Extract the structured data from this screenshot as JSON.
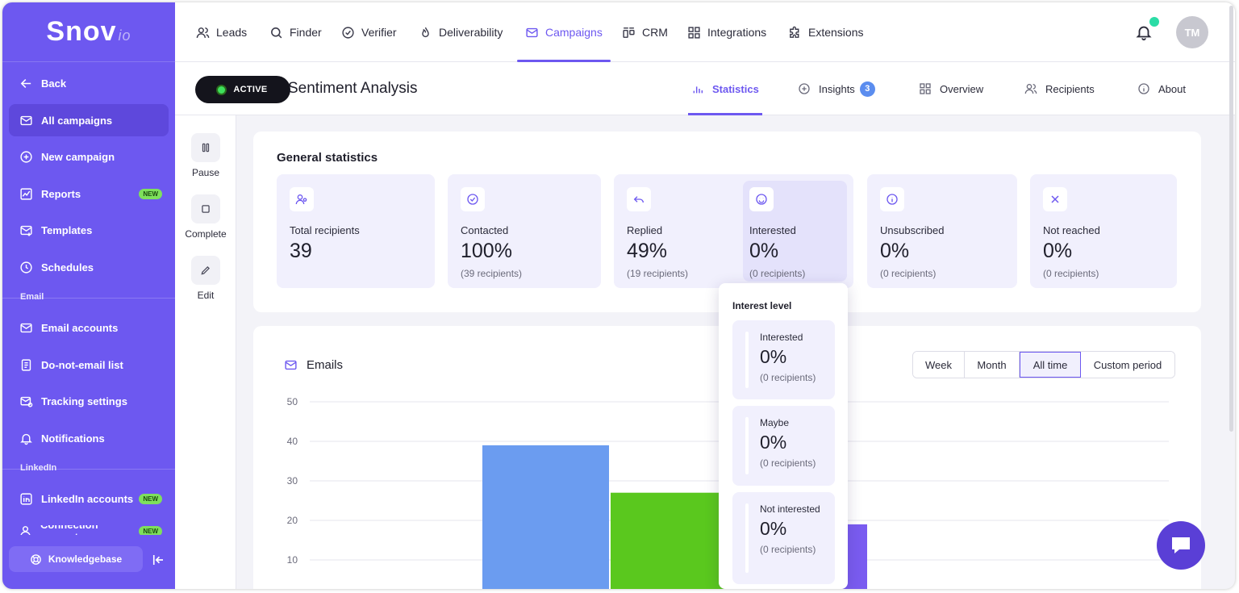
{
  "logo": {
    "main": "Snov",
    "suffix": "io"
  },
  "sidebar": {
    "back": "Back",
    "items": [
      {
        "label": "All campaigns",
        "icon": "mail-icon"
      },
      {
        "label": "New campaign",
        "icon": "plus-circle-icon"
      },
      {
        "label": "Reports",
        "icon": "chart-icon",
        "badge": "NEW"
      },
      {
        "label": "Templates",
        "icon": "template-icon"
      },
      {
        "label": "Schedules",
        "icon": "clock-icon"
      }
    ],
    "email_section": "Email",
    "email_items": [
      {
        "label": "Email accounts"
      },
      {
        "label": "Do-not-email list"
      },
      {
        "label": "Tracking settings"
      },
      {
        "label": "Notifications"
      }
    ],
    "linkedin_section": "LinkedIn",
    "linkedin_items": [
      {
        "label": "LinkedIn accounts",
        "badge": "NEW"
      },
      {
        "label": "Connection requests",
        "badge": "NEW"
      }
    ],
    "knowledgebase": "Knowledgebase"
  },
  "topnav": {
    "items": [
      "Leads",
      "Finder",
      "Verifier",
      "Deliverability",
      "Campaigns",
      "CRM",
      "Integrations",
      "Extensions"
    ],
    "active": "Campaigns",
    "avatar": "TM"
  },
  "campaign": {
    "status": "ACTIVE",
    "title": "Sentiment Analysis",
    "tabs": [
      {
        "label": "Statistics"
      },
      {
        "label": "Insights",
        "badge": "3"
      },
      {
        "label": "Overview"
      },
      {
        "label": "Recipients"
      },
      {
        "label": "About"
      }
    ]
  },
  "actions": {
    "pause": "Pause",
    "complete": "Complete",
    "edit": "Edit"
  },
  "general": {
    "title": "General statistics",
    "stats": [
      {
        "label": "Total recipients",
        "value": "39",
        "sub": ""
      },
      {
        "label": "Contacted",
        "value": "100%",
        "sub": "(39 recipients)"
      },
      {
        "label": "Replied",
        "value": "49%",
        "sub": "(19 recipients)"
      },
      {
        "label": "Interested",
        "value": "0%",
        "sub": "(0 recipients)"
      },
      {
        "label": "Unsubscribed",
        "value": "0%",
        "sub": "(0 recipients)"
      },
      {
        "label": "Not reached",
        "value": "0%",
        "sub": "(0 recipients)"
      }
    ]
  },
  "interest_popover": {
    "title": "Interest level",
    "items": [
      {
        "label": "Interested",
        "value": "0%",
        "sub": "(0 recipients)"
      },
      {
        "label": "Maybe",
        "value": "0%",
        "sub": "(0 recipients)"
      },
      {
        "label": "Not interested",
        "value": "0%",
        "sub": "(0 recipients)"
      }
    ]
  },
  "emails": {
    "title": "Emails",
    "periods": [
      "Week",
      "Month",
      "All time",
      "Custom period"
    ],
    "active_period": "All time"
  },
  "chart_data": {
    "type": "bar",
    "title": "Emails",
    "ylim": [
      0,
      50
    ],
    "yticks": [
      10,
      20,
      30,
      40,
      50
    ],
    "grid": true,
    "series": [
      {
        "values": [
          39
        ],
        "color": "#6b9cf0"
      },
      {
        "values": [
          27
        ],
        "color": "#5ac81e"
      },
      {
        "values": [
          19
        ],
        "color": "#7a5cf0"
      }
    ]
  },
  "colors": {
    "accent": "#6d58f0",
    "sidebar": "#6d58f0",
    "active_dot": "#3ee05c",
    "notification_dot": "#2bdca6"
  }
}
